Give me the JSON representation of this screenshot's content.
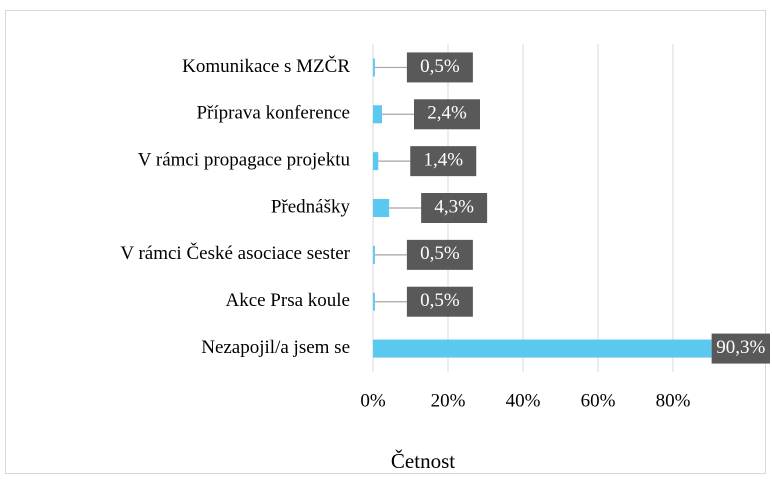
{
  "chart_data": {
    "type": "bar",
    "orientation": "horizontal",
    "x_label": "Četnost",
    "categories": [
      "Komunikace s MZČR",
      "Příprava konference",
      "V rámci propagace projektu",
      "Přednášky",
      "V rámci České asociace sester",
      "Akce Prsa koule",
      "Nezapojil/a jsem se"
    ],
    "values": [
      0.5,
      2.4,
      1.4,
      4.3,
      0.5,
      0.5,
      90.3
    ],
    "value_labels": [
      "0,5%",
      "2,4%",
      "1,4%",
      "4,3%",
      "0,5%",
      "0,5%",
      "90,3%"
    ],
    "color": "#5bc8f0",
    "xlim": [
      0,
      100
    ],
    "xticks": [
      {
        "value": 0,
        "label": "0%"
      },
      {
        "value": 20,
        "label": "20%"
      },
      {
        "value": 40,
        "label": "40%"
      },
      {
        "value": 60,
        "label": "60%"
      },
      {
        "value": 80,
        "label": "80%"
      }
    ],
    "grid": true
  }
}
